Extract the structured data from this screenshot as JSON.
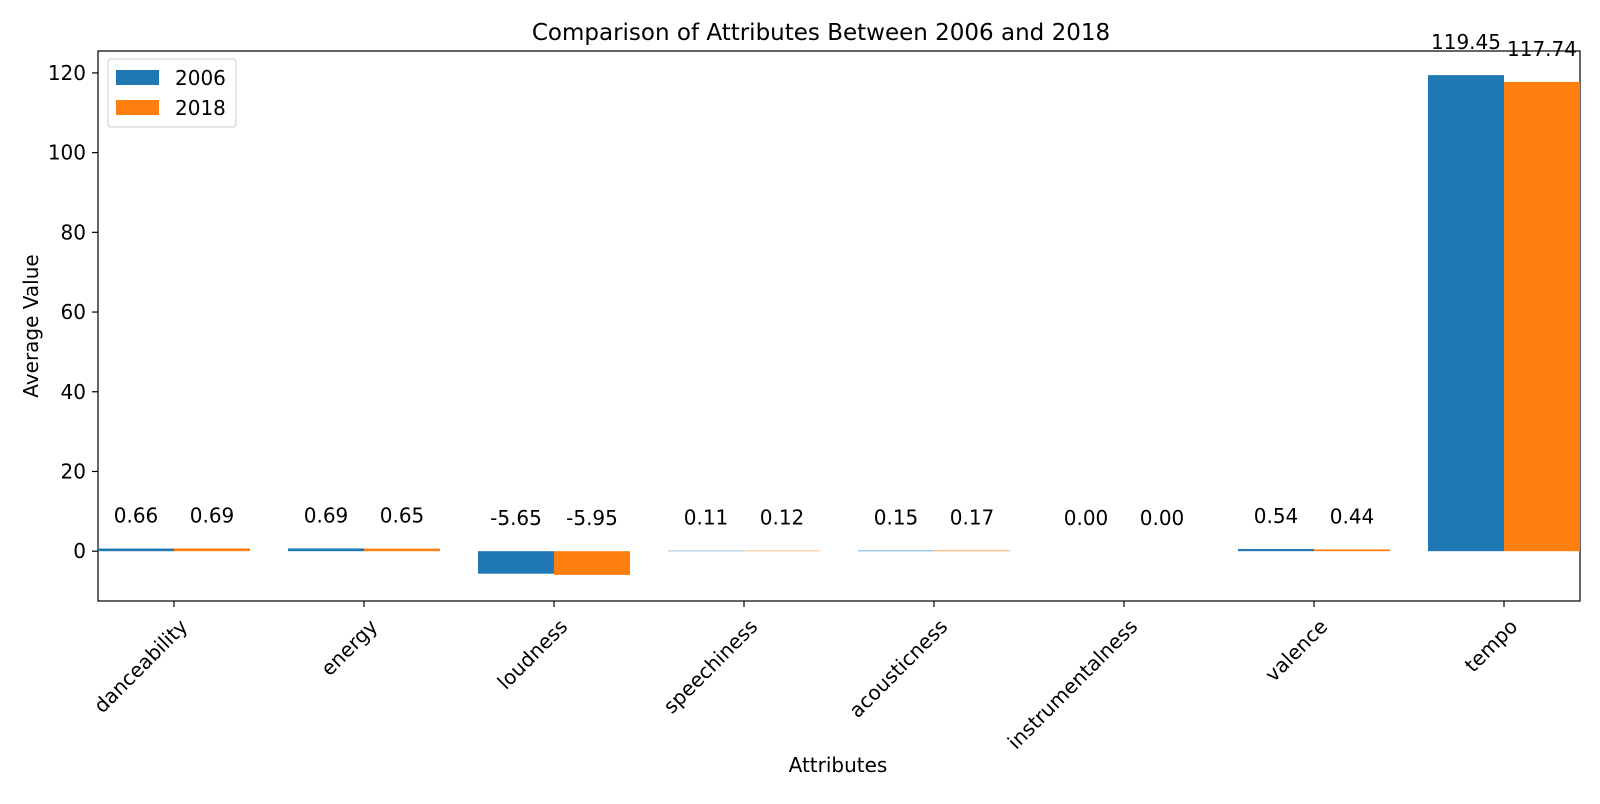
{
  "chart_data": {
    "type": "bar",
    "title": "Comparison of Attributes Between 2006 and 2018",
    "xlabel": "Attributes",
    "ylabel": "Average Value",
    "categories": [
      "danceability",
      "energy",
      "loudness",
      "speechiness",
      "acousticness",
      "instrumentalness",
      "valence",
      "tempo"
    ],
    "series": [
      {
        "name": "2006",
        "color": "#1f77b4",
        "values": [
          0.66,
          0.69,
          -5.65,
          0.11,
          0.15,
          0.0,
          0.54,
          119.45
        ],
        "labels": [
          "0.66",
          "0.69",
          "-5.65",
          "0.11",
          "0.15",
          "0.00",
          "0.54",
          "119.45"
        ]
      },
      {
        "name": "2018",
        "color": "#ff7f0e",
        "values": [
          0.69,
          0.65,
          -5.95,
          0.12,
          0.17,
          0.0,
          0.44,
          117.74
        ],
        "labels": [
          "0.69",
          "0.65",
          "-5.95",
          "0.12",
          "0.17",
          "0.00",
          "0.44",
          "117.74"
        ]
      }
    ],
    "ylim": [
      -12.5,
      125.5
    ],
    "yticks": [
      0,
      20,
      40,
      60,
      80,
      100,
      120
    ],
    "ytick_labels": [
      "0",
      "20",
      "40",
      "60",
      "80",
      "100",
      "120"
    ],
    "grid": false,
    "legend_position": "top-left"
  }
}
